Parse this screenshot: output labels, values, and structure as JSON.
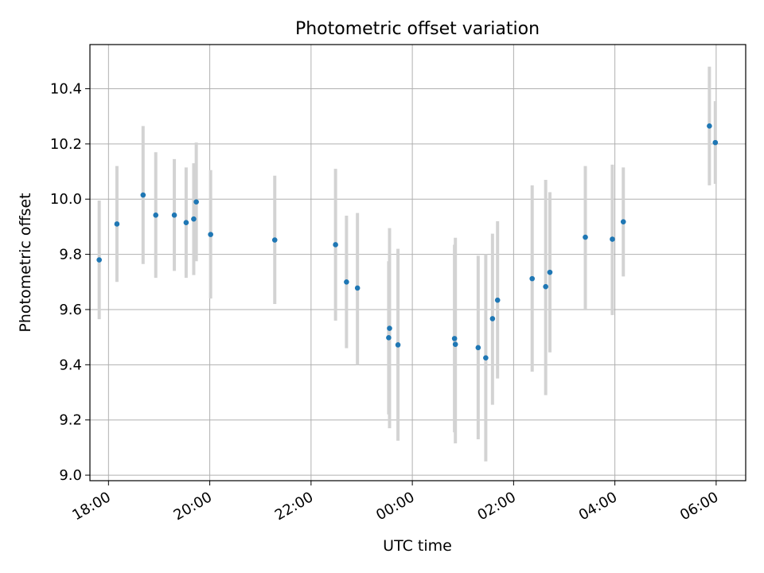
{
  "chart_data": {
    "type": "scatter",
    "title": "Photometric offset variation",
    "xlabel": "UTC time",
    "ylabel": "Photometric offset",
    "grid": true,
    "ylim": [
      8.98,
      10.56
    ],
    "xlim": [
      "17:38",
      "06:35"
    ],
    "xticks": [
      "18:00",
      "20:00",
      "22:00",
      "00:00",
      "02:00",
      "04:00",
      "06:00"
    ],
    "yticks": [
      "9.0",
      "9.2",
      "9.4",
      "9.6",
      "9.8",
      "10.0",
      "10.2",
      "10.4"
    ],
    "colors": {
      "point": "#1f77b4",
      "errorbar": "#d3d3d3",
      "grid": "#b0b0b0"
    },
    "points": [
      {
        "x": "17:49",
        "y": 9.78,
        "lo": 9.565,
        "hi": 9.995
      },
      {
        "x": "18:10",
        "y": 9.91,
        "lo": 9.7,
        "hi": 10.12
      },
      {
        "x": "18:41",
        "y": 10.015,
        "lo": 9.765,
        "hi": 10.265
      },
      {
        "x": "18:56",
        "y": 9.942,
        "lo": 9.715,
        "hi": 10.17
      },
      {
        "x": "19:18",
        "y": 9.942,
        "lo": 9.74,
        "hi": 10.145
      },
      {
        "x": "19:32",
        "y": 9.915,
        "lo": 9.715,
        "hi": 10.115
      },
      {
        "x": "19:41",
        "y": 9.928,
        "lo": 9.725,
        "hi": 10.13
      },
      {
        "x": "19:44",
        "y": 9.99,
        "lo": 9.775,
        "hi": 10.205
      },
      {
        "x": "20:01",
        "y": 9.872,
        "lo": 9.64,
        "hi": 10.105
      },
      {
        "x": "21:17",
        "y": 9.852,
        "lo": 9.62,
        "hi": 10.085
      },
      {
        "x": "22:29",
        "y": 9.835,
        "lo": 9.56,
        "hi": 10.11
      },
      {
        "x": "22:42",
        "y": 9.7,
        "lo": 9.46,
        "hi": 9.94
      },
      {
        "x": "22:55",
        "y": 9.678,
        "lo": 9.4,
        "hi": 9.95
      },
      {
        "x": "23:33",
        "y": 9.532,
        "lo": 9.17,
        "hi": 9.895
      },
      {
        "x": "23:32",
        "y": 9.498,
        "lo": 9.22,
        "hi": 9.775
      },
      {
        "x": "23:43",
        "y": 9.472,
        "lo": 9.125,
        "hi": 9.82
      },
      {
        "x": "00:50",
        "y": 9.495,
        "lo": 9.155,
        "hi": 9.835
      },
      {
        "x": "00:51",
        "y": 9.474,
        "lo": 9.115,
        "hi": 9.86
      },
      {
        "x": "01:18",
        "y": 9.462,
        "lo": 9.13,
        "hi": 9.795
      },
      {
        "x": "01:27",
        "y": 9.425,
        "lo": 9.05,
        "hi": 9.8
      },
      {
        "x": "01:35",
        "y": 9.567,
        "lo": 9.255,
        "hi": 9.875
      },
      {
        "x": "01:41",
        "y": 9.634,
        "lo": 9.35,
        "hi": 9.92
      },
      {
        "x": "02:22",
        "y": 9.712,
        "lo": 9.375,
        "hi": 10.05
      },
      {
        "x": "02:38",
        "y": 9.683,
        "lo": 9.29,
        "hi": 10.07
      },
      {
        "x": "02:43",
        "y": 9.735,
        "lo": 9.445,
        "hi": 10.025
      },
      {
        "x": "03:25",
        "y": 9.862,
        "lo": 9.6,
        "hi": 10.12
      },
      {
        "x": "03:57",
        "y": 9.855,
        "lo": 9.58,
        "hi": 10.125
      },
      {
        "x": "04:10",
        "y": 9.918,
        "lo": 9.72,
        "hi": 10.115
      },
      {
        "x": "05:52",
        "y": 10.265,
        "lo": 10.05,
        "hi": 10.48
      },
      {
        "x": "05:59",
        "y": 10.205,
        "lo": 10.055,
        "hi": 10.355
      }
    ]
  }
}
